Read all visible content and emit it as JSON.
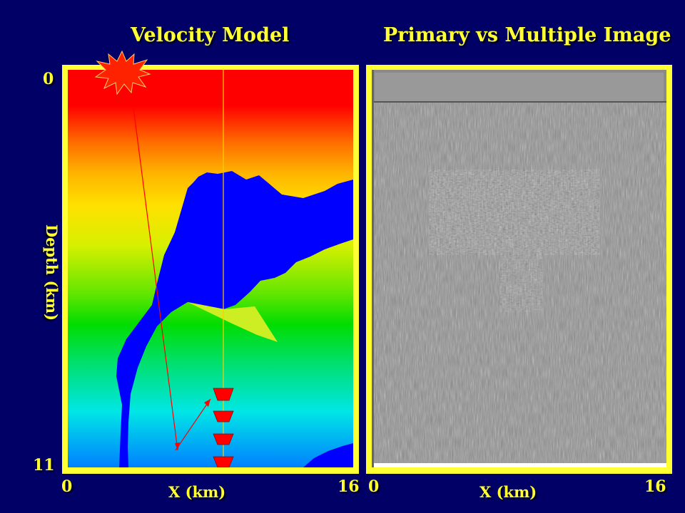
{
  "left_panel": {
    "title": "Velocity Model",
    "depth_label": "Depth (km)",
    "depth_top_tick": "0",
    "depth_bottom_tick": "11",
    "x_label": "X (km)",
    "x_min_tick": "0",
    "x_max_tick": "16"
  },
  "right_panel": {
    "title": "Primary vs Multiple Image",
    "x_label": "X (km)",
    "x_min_tick": "0",
    "x_max_tick": "16"
  },
  "colors": {
    "background": "#000066",
    "frame": "#ffff33",
    "text": "#ffff33",
    "salt_body": "#0000ff",
    "source_star": "#ff2200",
    "ray_path": "#ff0000",
    "receiver": "#ff0000"
  },
  "icons": {
    "source": "star-burst-icon",
    "receiver": "inverted-triangle-icon"
  }
}
